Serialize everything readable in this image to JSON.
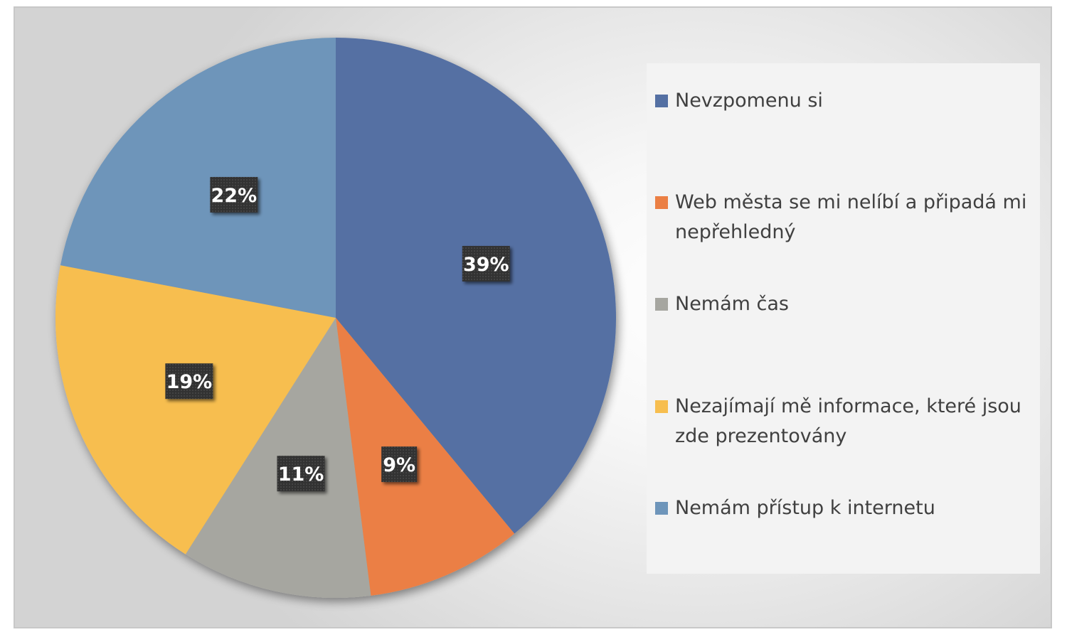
{
  "chart_data": {
    "type": "pie",
    "categories": [
      "Nevzpomenu si",
      "Web města se mi nelíbí a připadá mi nepřehledný",
      "Nemám čas",
      "Nezajímají mě informace, které jsou zde prezentovány",
      "Nemám přístup k internetu"
    ],
    "values": [
      39,
      9,
      11,
      19,
      22
    ],
    "data_labels": [
      "39%",
      "9%",
      "11%",
      "19%",
      "22%"
    ],
    "colors": [
      "#5470a3",
      "#eb7f44",
      "#a6a6a0",
      "#f7be4f",
      "#6e95ba"
    ],
    "legend_placement": "right",
    "start_angle": "12 o'clock",
    "direction": "clockwise"
  }
}
